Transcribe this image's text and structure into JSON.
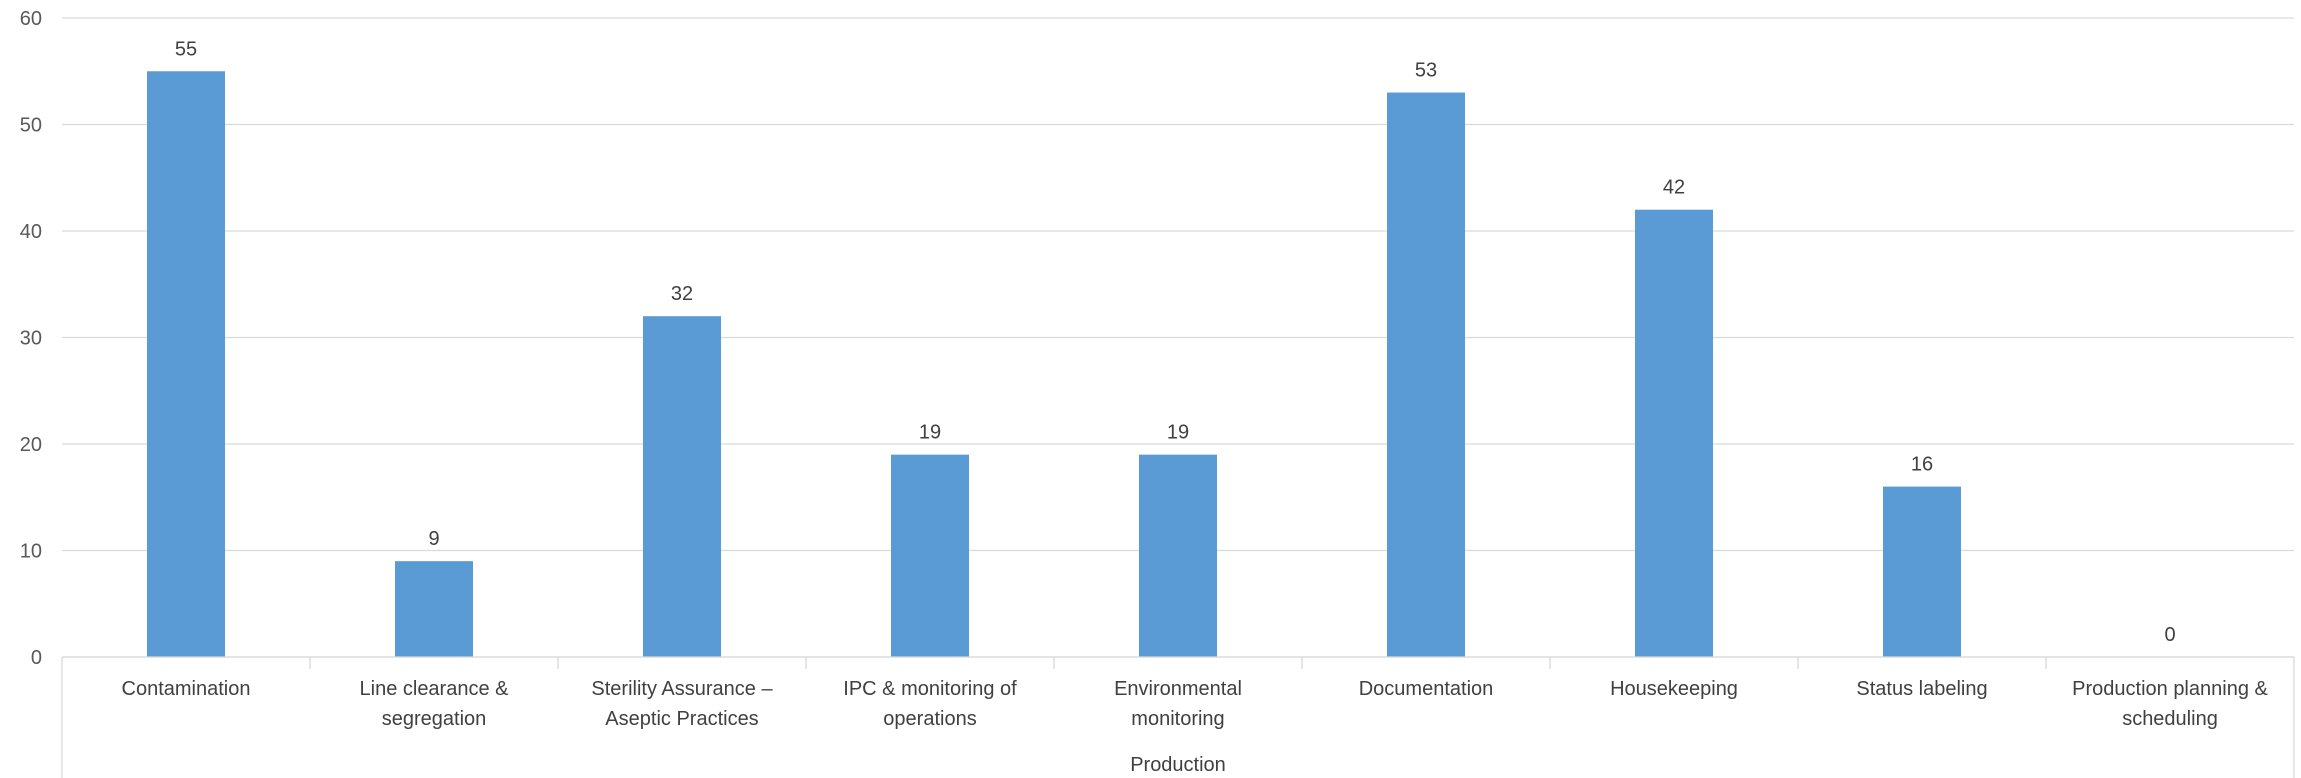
{
  "chart_data": {
    "type": "bar",
    "categories": [
      "Contamination",
      "Line clearance & segregation",
      "Sterility Assurance – Aseptic Practices",
      "IPC & monitoring of operations",
      "Environmental monitoring",
      "Documentation",
      "Housekeeping",
      "Status labeling",
      "Production planning & scheduling"
    ],
    "category_lines": [
      [
        "Contamination"
      ],
      [
        "Line clearance &",
        "segregation"
      ],
      [
        "Sterility Assurance –",
        "Aseptic Practices"
      ],
      [
        "IPC & monitoring of",
        "operations"
      ],
      [
        "Environmental",
        "monitoring"
      ],
      [
        "Documentation"
      ],
      [
        "Housekeeping"
      ],
      [
        "Status labeling"
      ],
      [
        "Production planning &",
        "scheduling"
      ]
    ],
    "values": [
      55,
      9,
      32,
      19,
      19,
      53,
      42,
      16,
      0
    ],
    "group_label": "Production",
    "ylim": [
      0,
      60
    ],
    "yticks": [
      0,
      10,
      20,
      30,
      40,
      50,
      60
    ],
    "grid": true,
    "legend": "none",
    "bar_color": "#5B9BD5",
    "title": "",
    "xlabel": "",
    "ylabel": ""
  }
}
